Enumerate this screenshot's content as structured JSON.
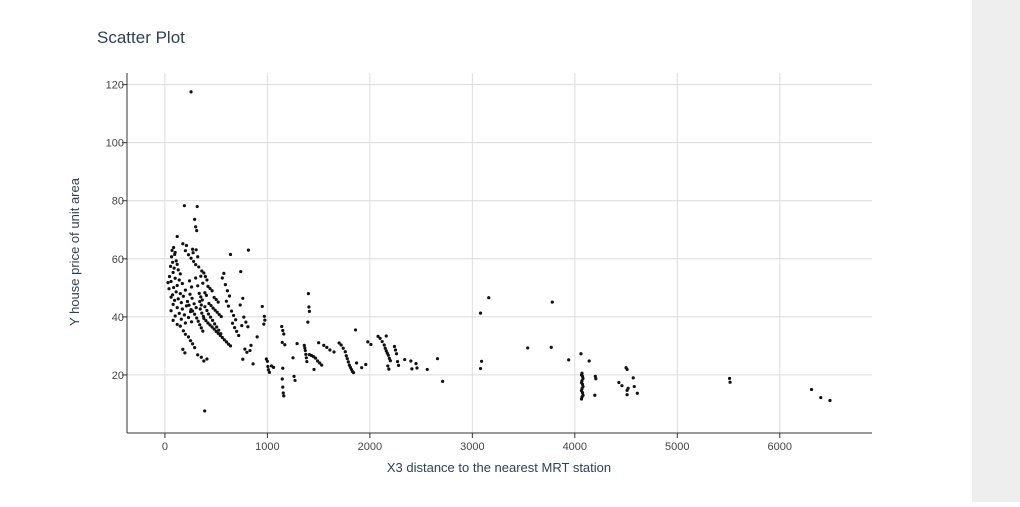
{
  "chart_data": {
    "type": "scatter",
    "title": "Scatter Plot",
    "xlabel": "X3 distance to the nearest MRT station",
    "ylabel": "Y house price of unit area",
    "xlim": [
      -370,
      6900
    ],
    "ylim": [
      0,
      124
    ],
    "xticks": [
      0,
      1000,
      2000,
      3000,
      4000,
      5000,
      6000
    ],
    "yticks": [
      20,
      40,
      60,
      80,
      100,
      120
    ],
    "grid": true,
    "marker_color": "#111111",
    "points": [
      [
        255,
        117.5
      ],
      [
        388,
        7.6
      ],
      [
        190,
        78.3
      ],
      [
        315,
        78.0
      ],
      [
        815,
        63.0
      ],
      [
        640,
        61.5
      ],
      [
        290,
        73.6
      ],
      [
        300,
        71.0
      ],
      [
        310,
        69.7
      ],
      [
        270,
        63.3
      ],
      [
        305,
        63.1
      ],
      [
        275,
        62.1
      ],
      [
        320,
        60.7
      ],
      [
        120,
        67.7
      ],
      [
        85,
        63.9
      ],
      [
        70,
        62.9
      ],
      [
        100,
        62.2
      ],
      [
        95,
        61.5
      ],
      [
        65,
        60.7
      ],
      [
        110,
        59.3
      ],
      [
        75,
        58.8
      ],
      [
        120,
        58.1
      ],
      [
        55,
        57.4
      ],
      [
        90,
        56.8
      ],
      [
        130,
        56.2
      ],
      [
        80,
        55.3
      ],
      [
        150,
        54.8
      ],
      [
        45,
        53.9
      ],
      [
        100,
        53.3
      ],
      [
        140,
        52.7
      ],
      [
        60,
        52.2
      ],
      [
        30,
        51.8
      ],
      [
        170,
        51.5
      ],
      [
        120,
        50.8
      ],
      [
        85,
        50.1
      ],
      [
        40,
        49.7
      ],
      [
        200,
        49.2
      ],
      [
        110,
        48.6
      ],
      [
        150,
        48.0
      ],
      [
        75,
        47.6
      ],
      [
        180,
        47.1
      ],
      [
        60,
        46.8
      ],
      [
        130,
        46.2
      ],
      [
        95,
        45.7
      ],
      [
        220,
        45.3
      ],
      [
        160,
        44.9
      ],
      [
        80,
        44.3
      ],
      [
        210,
        43.8
      ],
      [
        120,
        43.2
      ],
      [
        170,
        42.7
      ],
      [
        60,
        42.1
      ],
      [
        250,
        41.8
      ],
      [
        140,
        41.2
      ],
      [
        190,
        40.7
      ],
      [
        100,
        40.3
      ],
      [
        230,
        39.8
      ],
      [
        160,
        39.2
      ],
      [
        80,
        38.8
      ],
      [
        260,
        38.3
      ],
      [
        200,
        37.9
      ],
      [
        120,
        37.4
      ],
      [
        150,
        36.8
      ],
      [
        180,
        35.2
      ],
      [
        200,
        34.0
      ],
      [
        230,
        33.1
      ],
      [
        250,
        31.8
      ],
      [
        270,
        30.7
      ],
      [
        290,
        29.4
      ],
      [
        175,
        28.8
      ],
      [
        195,
        27.6
      ],
      [
        320,
        26.9
      ],
      [
        355,
        26.1
      ],
      [
        410,
        25.5
      ],
      [
        380,
        24.8
      ],
      [
        175,
        65.2
      ],
      [
        210,
        64.6
      ],
      [
        200,
        62.8
      ],
      [
        230,
        61.4
      ],
      [
        255,
        60.2
      ],
      [
        280,
        59.1
      ],
      [
        300,
        58.0
      ],
      [
        330,
        57.2
      ],
      [
        360,
        55.8
      ],
      [
        380,
        55.1
      ],
      [
        395,
        53.9
      ],
      [
        410,
        52.7
      ],
      [
        350,
        54.0
      ],
      [
        370,
        51.6
      ],
      [
        420,
        50.5
      ],
      [
        440,
        49.8
      ],
      [
        460,
        49.0
      ],
      [
        390,
        48.3
      ],
      [
        405,
        47.4
      ],
      [
        480,
        46.7
      ],
      [
        500,
        46.0
      ],
      [
        520,
        45.1
      ],
      [
        430,
        44.6
      ],
      [
        450,
        43.9
      ],
      [
        470,
        43.0
      ],
      [
        490,
        42.3
      ],
      [
        510,
        41.6
      ],
      [
        530,
        40.8
      ],
      [
        550,
        40.1
      ],
      [
        380,
        39.5
      ],
      [
        400,
        38.7
      ],
      [
        420,
        37.9
      ],
      [
        440,
        37.2
      ],
      [
        460,
        36.5
      ],
      [
        480,
        35.8
      ],
      [
        500,
        35.0
      ],
      [
        520,
        34.3
      ],
      [
        540,
        33.6
      ],
      [
        560,
        32.9
      ],
      [
        580,
        32.1
      ],
      [
        600,
        31.4
      ],
      [
        620,
        30.6
      ],
      [
        640,
        30.0
      ],
      [
        340,
        45.3
      ],
      [
        355,
        44.1
      ],
      [
        345,
        42.7
      ],
      [
        360,
        41.3
      ],
      [
        375,
        40.2
      ],
      [
        390,
        43.5
      ],
      [
        410,
        42.2
      ],
      [
        425,
        41.0
      ],
      [
        445,
        39.9
      ],
      [
        465,
        38.8
      ],
      [
        485,
        37.6
      ],
      [
        505,
        36.5
      ],
      [
        525,
        35.4
      ],
      [
        545,
        34.2
      ],
      [
        300,
        53.4
      ],
      [
        320,
        50.7
      ],
      [
        335,
        48.1
      ],
      [
        350,
        46.9
      ],
      [
        365,
        45.8
      ],
      [
        285,
        44.5
      ],
      [
        305,
        43.2
      ],
      [
        270,
        42.0
      ],
      [
        290,
        40.9
      ],
      [
        310,
        39.6
      ],
      [
        325,
        38.5
      ],
      [
        340,
        37.3
      ],
      [
        355,
        36.2
      ],
      [
        370,
        35.1
      ],
      [
        240,
        52.4
      ],
      [
        260,
        50.3
      ],
      [
        245,
        47.8
      ],
      [
        265,
        46.4
      ],
      [
        235,
        44.0
      ],
      [
        255,
        42.5
      ],
      [
        575,
        55.0
      ],
      [
        560,
        53.4
      ],
      [
        590,
        51.1
      ],
      [
        610,
        49.0
      ],
      [
        630,
        47.2
      ],
      [
        600,
        45.4
      ],
      [
        620,
        43.7
      ],
      [
        650,
        42.0
      ],
      [
        670,
        40.5
      ],
      [
        690,
        39.0
      ],
      [
        660,
        37.8
      ],
      [
        680,
        36.3
      ],
      [
        700,
        35.0
      ],
      [
        720,
        33.6
      ],
      [
        740,
        55.6
      ],
      [
        760,
        46.4
      ],
      [
        735,
        44.1
      ],
      [
        770,
        39.9
      ],
      [
        790,
        38.2
      ],
      [
        750,
        37.0
      ],
      [
        810,
        36.6
      ],
      [
        780,
        28.9
      ],
      [
        800,
        27.8
      ],
      [
        760,
        25.4
      ],
      [
        840,
        30.2
      ],
      [
        830,
        28.4
      ],
      [
        860,
        23.8
      ],
      [
        900,
        33.1
      ],
      [
        950,
        43.6
      ],
      [
        970,
        40.2
      ],
      [
        975,
        38.9
      ],
      [
        965,
        37.5
      ],
      [
        990,
        25.5
      ],
      [
        1000,
        24.7
      ],
      [
        1005,
        22.9
      ],
      [
        1010,
        21.8
      ],
      [
        1020,
        20.9
      ],
      [
        1040,
        23.1
      ],
      [
        1060,
        22.6
      ],
      [
        1140,
        36.7
      ],
      [
        1150,
        35.3
      ],
      [
        1160,
        34.1
      ],
      [
        1145,
        31.2
      ],
      [
        1170,
        30.4
      ],
      [
        1150,
        22.3
      ],
      [
        1145,
        18.6
      ],
      [
        1150,
        15.8
      ],
      [
        1155,
        13.8
      ],
      [
        1160,
        12.8
      ],
      [
        1250,
        25.9
      ],
      [
        1260,
        19.5
      ],
      [
        1270,
        18.1
      ],
      [
        1290,
        30.8
      ],
      [
        1400,
        48.0
      ],
      [
        1405,
        43.4
      ],
      [
        1410,
        41.9
      ],
      [
        1395,
        38.2
      ],
      [
        1360,
        30.2
      ],
      [
        1365,
        29.3
      ],
      [
        1370,
        28.4
      ],
      [
        1375,
        27.1
      ],
      [
        1380,
        25.9
      ],
      [
        1385,
        24.6
      ],
      [
        1410,
        27.0
      ],
      [
        1430,
        26.7
      ],
      [
        1450,
        26.3
      ],
      [
        1470,
        25.8
      ],
      [
        1490,
        24.8
      ],
      [
        1510,
        24.1
      ],
      [
        1530,
        23.4
      ],
      [
        1455,
        21.9
      ],
      [
        1500,
        31.1
      ],
      [
        1550,
        30.2
      ],
      [
        1580,
        29.5
      ],
      [
        1610,
        28.6
      ],
      [
        1650,
        27.9
      ],
      [
        1700,
        31.0
      ],
      [
        1720,
        30.3
      ],
      [
        1740,
        29.2
      ],
      [
        1760,
        28.0
      ],
      [
        1770,
        26.6
      ],
      [
        1780,
        25.6
      ],
      [
        1790,
        24.5
      ],
      [
        1800,
        23.4
      ],
      [
        1810,
        22.6
      ],
      [
        1820,
        21.9
      ],
      [
        1830,
        21.2
      ],
      [
        1840,
        20.8
      ],
      [
        1860,
        35.5
      ],
      [
        1870,
        24.1
      ],
      [
        1920,
        22.5
      ],
      [
        1960,
        23.6
      ],
      [
        1980,
        31.4
      ],
      [
        2010,
        30.5
      ],
      [
        2080,
        33.3
      ],
      [
        2100,
        32.6
      ],
      [
        2120,
        31.5
      ],
      [
        2140,
        30.3
      ],
      [
        2150,
        29.2
      ],
      [
        2160,
        28.3
      ],
      [
        2170,
        27.5
      ],
      [
        2180,
        26.8
      ],
      [
        2190,
        25.7
      ],
      [
        2200,
        24.9
      ],
      [
        2160,
        33.4
      ],
      [
        2175,
        23.1
      ],
      [
        2185,
        22.0
      ],
      [
        2240,
        29.8
      ],
      [
        2250,
        28.6
      ],
      [
        2260,
        27.3
      ],
      [
        2270,
        24.6
      ],
      [
        2280,
        23.3
      ],
      [
        2340,
        25.3
      ],
      [
        2400,
        24.8
      ],
      [
        2410,
        22.1
      ],
      [
        2450,
        23.9
      ],
      [
        2460,
        22.4
      ],
      [
        2560,
        21.9
      ],
      [
        2660,
        25.6
      ],
      [
        2710,
        17.8
      ],
      [
        3080,
        41.3
      ],
      [
        3160,
        46.6
      ],
      [
        3090,
        24.7
      ],
      [
        3080,
        22.2
      ],
      [
        3540,
        29.3
      ],
      [
        3770,
        29.5
      ],
      [
        3780,
        45.1
      ],
      [
        3940,
        25.2
      ],
      [
        4060,
        27.3
      ],
      [
        4070,
        20.6
      ],
      [
        4065,
        20.0
      ],
      [
        4075,
        19.5
      ],
      [
        4080,
        18.8
      ],
      [
        4070,
        18.0
      ],
      [
        4065,
        17.4
      ],
      [
        4075,
        16.8
      ],
      [
        4080,
        16.0
      ],
      [
        4070,
        15.3
      ],
      [
        4065,
        14.6
      ],
      [
        4075,
        13.9
      ],
      [
        4080,
        13.0
      ],
      [
        4070,
        12.4
      ],
      [
        4065,
        11.7
      ],
      [
        4140,
        24.8
      ],
      [
        4200,
        19.5
      ],
      [
        4205,
        18.7
      ],
      [
        4195,
        13.0
      ],
      [
        4430,
        17.4
      ],
      [
        4460,
        16.3
      ],
      [
        4500,
        22.5
      ],
      [
        4510,
        21.9
      ],
      [
        4520,
        15.4
      ],
      [
        4510,
        14.7
      ],
      [
        4510,
        13.2
      ],
      [
        4570,
        19.0
      ],
      [
        4580,
        16.0
      ],
      [
        4610,
        13.7
      ],
      [
        5510,
        18.8
      ],
      [
        5515,
        17.5
      ],
      [
        6310,
        15.0
      ],
      [
        6400,
        12.2
      ],
      [
        6490,
        11.2
      ]
    ]
  }
}
